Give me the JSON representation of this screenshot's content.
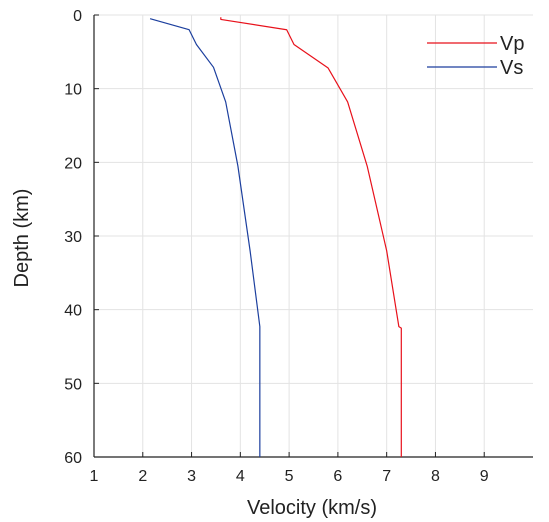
{
  "chart_data": {
    "type": "line",
    "title": "",
    "xlabel": "Velocity (km/s)",
    "ylabel": "Depth (km)",
    "xlim": [
      1,
      10
    ],
    "ylim": [
      0,
      60
    ],
    "y_inverted": true,
    "x_ticks": [
      1,
      2,
      3,
      4,
      5,
      6,
      7,
      8,
      9
    ],
    "y_ticks": [
      0,
      10,
      20,
      30,
      40,
      50,
      60
    ],
    "grid": true,
    "legend_position": "top-right",
    "series": [
      {
        "name": "Vp",
        "color": "#e8111b",
        "points": [
          [
            3.6,
            0.3
          ],
          [
            3.6,
            0.6
          ],
          [
            4.95,
            2.0
          ],
          [
            5.1,
            4.0
          ],
          [
            5.8,
            7.2
          ],
          [
            6.2,
            11.8
          ],
          [
            6.6,
            20.5
          ],
          [
            7.0,
            32.0
          ],
          [
            7.25,
            42.3
          ],
          [
            7.3,
            42.5
          ],
          [
            7.3,
            60.0
          ]
        ]
      },
      {
        "name": "Vs",
        "color": "#1c3f9e",
        "points": [
          [
            2.15,
            0.5
          ],
          [
            2.95,
            2.0
          ],
          [
            3.1,
            4.0
          ],
          [
            3.45,
            7.1
          ],
          [
            3.7,
            11.8
          ],
          [
            3.95,
            20.5
          ],
          [
            4.2,
            32.0
          ],
          [
            4.4,
            42.3
          ],
          [
            4.4,
            60.0
          ]
        ]
      }
    ]
  }
}
